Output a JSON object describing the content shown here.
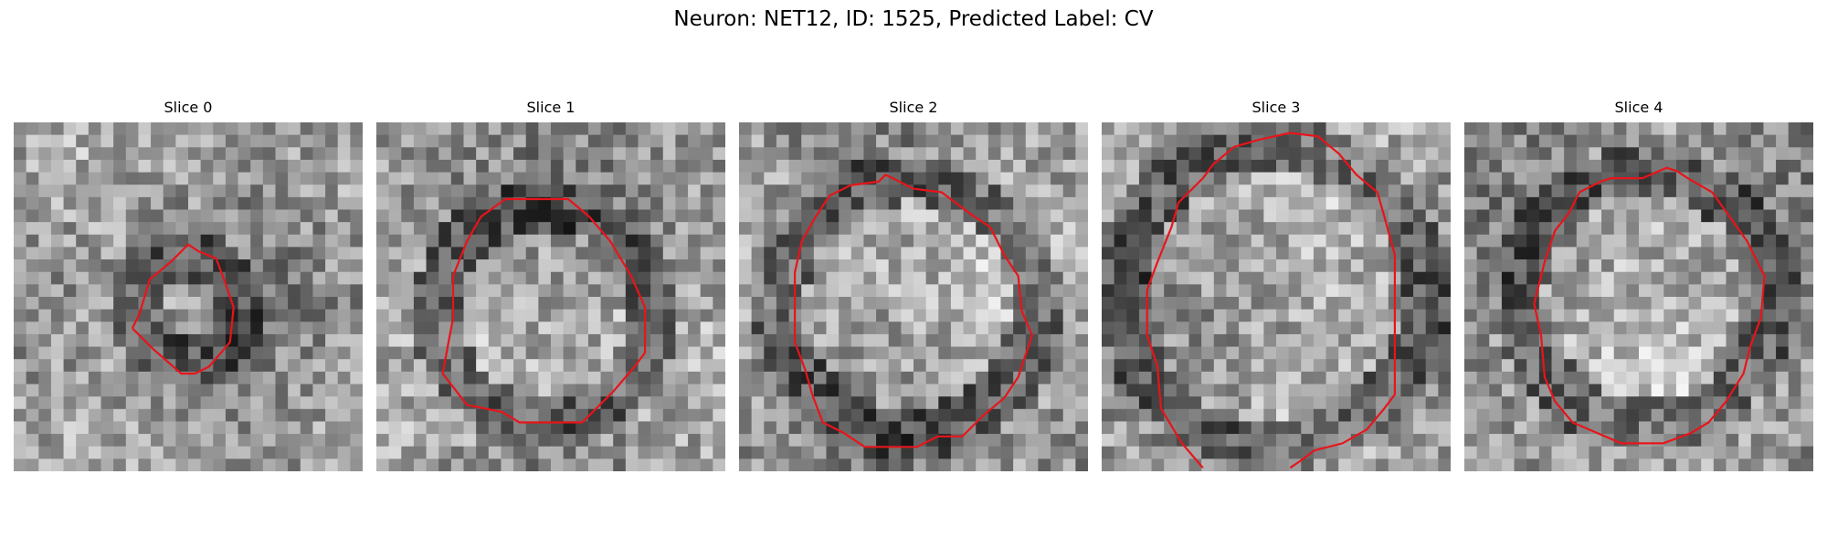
{
  "figure": {
    "title": "Neuron: NET12, ID: 1525, Predicted Label: CV"
  },
  "contour_color": "#e8141a",
  "panels": [
    {
      "title": "Slice 0",
      "seed": 11,
      "contour": [
        [
          0.34,
          0.59
        ],
        [
          0.36,
          0.55
        ],
        [
          0.39,
          0.45
        ],
        [
          0.45,
          0.4
        ],
        [
          0.5,
          0.35
        ],
        [
          0.53,
          0.37
        ],
        [
          0.58,
          0.39
        ],
        [
          0.61,
          0.47
        ],
        [
          0.63,
          0.53
        ],
        [
          0.62,
          0.63
        ],
        [
          0.56,
          0.7
        ],
        [
          0.52,
          0.72
        ],
        [
          0.48,
          0.72
        ],
        [
          0.4,
          0.65
        ]
      ]
    },
    {
      "title": "Slice 1",
      "seed": 23,
      "contour": [
        [
          0.19,
          0.72
        ],
        [
          0.22,
          0.56
        ],
        [
          0.22,
          0.44
        ],
        [
          0.26,
          0.34
        ],
        [
          0.3,
          0.27
        ],
        [
          0.37,
          0.22
        ],
        [
          0.55,
          0.22
        ],
        [
          0.61,
          0.27
        ],
        [
          0.67,
          0.34
        ],
        [
          0.73,
          0.44
        ],
        [
          0.77,
          0.53
        ],
        [
          0.77,
          0.66
        ],
        [
          0.74,
          0.7
        ],
        [
          0.68,
          0.77
        ],
        [
          0.59,
          0.86
        ],
        [
          0.41,
          0.86
        ],
        [
          0.36,
          0.83
        ],
        [
          0.26,
          0.81
        ]
      ]
    },
    {
      "title": "Slice 2",
      "seed": 37,
      "contour": [
        [
          0.16,
          0.43
        ],
        [
          0.18,
          0.34
        ],
        [
          0.22,
          0.27
        ],
        [
          0.26,
          0.21
        ],
        [
          0.32,
          0.18
        ],
        [
          0.4,
          0.17
        ],
        [
          0.42,
          0.15
        ],
        [
          0.44,
          0.16
        ],
        [
          0.5,
          0.19
        ],
        [
          0.58,
          0.2
        ],
        [
          0.66,
          0.26
        ],
        [
          0.72,
          0.3
        ],
        [
          0.76,
          0.38
        ],
        [
          0.8,
          0.44
        ],
        [
          0.81,
          0.54
        ],
        [
          0.84,
          0.61
        ],
        [
          0.8,
          0.73
        ],
        [
          0.76,
          0.79
        ],
        [
          0.7,
          0.84
        ],
        [
          0.64,
          0.9
        ],
        [
          0.57,
          0.9
        ],
        [
          0.51,
          0.93
        ],
        [
          0.36,
          0.93
        ],
        [
          0.3,
          0.89
        ],
        [
          0.24,
          0.86
        ],
        [
          0.21,
          0.78
        ],
        [
          0.19,
          0.71
        ],
        [
          0.16,
          0.63
        ]
      ]
    },
    {
      "title": "Slice 3",
      "seed": 51,
      "contour": [
        [
          0.29,
          0.99
        ],
        [
          0.23,
          0.92
        ],
        [
          0.17,
          0.82
        ],
        [
          0.16,
          0.7
        ],
        [
          0.13,
          0.61
        ],
        [
          0.13,
          0.48
        ],
        [
          0.16,
          0.4
        ],
        [
          0.2,
          0.3
        ],
        [
          0.22,
          0.23
        ],
        [
          0.29,
          0.16
        ],
        [
          0.32,
          0.12
        ],
        [
          0.38,
          0.07
        ],
        [
          0.45,
          0.05
        ],
        [
          0.54,
          0.03
        ],
        [
          0.62,
          0.04
        ],
        [
          0.68,
          0.09
        ],
        [
          0.73,
          0.15
        ],
        [
          0.79,
          0.2
        ],
        [
          0.81,
          0.27
        ],
        [
          0.84,
          0.38
        ],
        [
          0.84,
          0.63
        ],
        [
          0.84,
          0.78
        ],
        [
          0.81,
          0.82
        ],
        [
          0.76,
          0.88
        ],
        [
          0.69,
          0.92
        ],
        [
          0.61,
          0.94
        ],
        [
          0.57,
          0.97
        ],
        [
          0.54,
          0.99
        ]
      ]
    },
    {
      "title": "Slice 4",
      "seed": 67,
      "contour": [
        [
          0.2,
          0.52
        ],
        [
          0.23,
          0.4
        ],
        [
          0.26,
          0.31
        ],
        [
          0.3,
          0.26
        ],
        [
          0.33,
          0.2
        ],
        [
          0.39,
          0.17
        ],
        [
          0.42,
          0.16
        ],
        [
          0.51,
          0.16
        ],
        [
          0.58,
          0.13
        ],
        [
          0.61,
          0.14
        ],
        [
          0.64,
          0.16
        ],
        [
          0.71,
          0.2
        ],
        [
          0.76,
          0.27
        ],
        [
          0.81,
          0.34
        ],
        [
          0.86,
          0.44
        ],
        [
          0.85,
          0.56
        ],
        [
          0.82,
          0.64
        ],
        [
          0.8,
          0.72
        ],
        [
          0.75,
          0.8
        ],
        [
          0.7,
          0.86
        ],
        [
          0.65,
          0.89
        ],
        [
          0.57,
          0.92
        ],
        [
          0.45,
          0.92
        ],
        [
          0.38,
          0.89
        ],
        [
          0.31,
          0.86
        ],
        [
          0.26,
          0.8
        ],
        [
          0.23,
          0.73
        ],
        [
          0.22,
          0.61
        ]
      ]
    }
  ]
}
